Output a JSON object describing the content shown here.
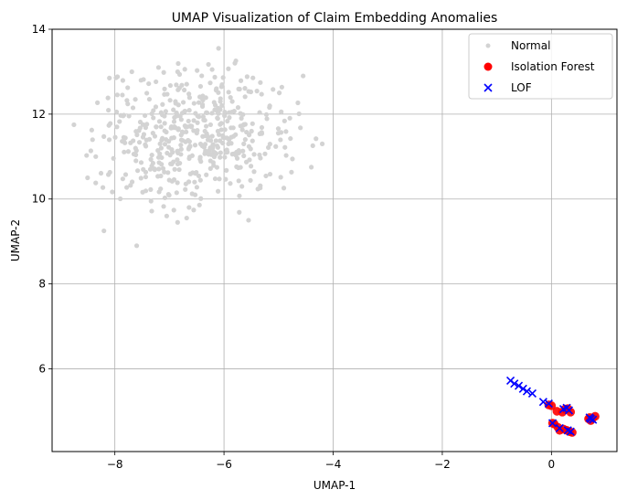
{
  "chart_data": {
    "type": "scatter",
    "title": "UMAP Visualization of Claim Embedding Anomalies",
    "xlabel": "UMAP-1",
    "ylabel": "UMAP-2",
    "xlim": [
      -9.15,
      1.2
    ],
    "ylim": [
      4.05,
      14.0
    ],
    "xticks": [
      -8,
      -6,
      -4,
      -2,
      0
    ],
    "yticks": [
      6,
      8,
      10,
      12,
      14
    ],
    "grid": true,
    "legend_position": "top-right",
    "series": [
      {
        "name": "Normal",
        "color": "#d3d3d3",
        "marker": "circle-small",
        "generated": {
          "count": 480,
          "center": [
            -6.5,
            11.45
          ],
          "radius": [
            2.2,
            2.0
          ],
          "seed": 7
        },
        "points": [
          [
            -8.2,
            9.25
          ],
          [
            -7.6,
            8.9
          ],
          [
            -5.55,
            9.5
          ],
          [
            -6.1,
            13.55
          ],
          [
            -4.2,
            11.3
          ],
          [
            -8.75,
            11.75
          ],
          [
            -8.5,
            10.5
          ],
          [
            -4.55,
            12.9
          ],
          [
            -5.8,
            13.2
          ],
          [
            -7.2,
            13.1
          ],
          [
            -8.1,
            12.85
          ],
          [
            -4.4,
            10.75
          ],
          [
            -6.85,
            9.45
          ],
          [
            -8.35,
            11.0
          ],
          [
            -7.05,
            9.6
          ]
        ]
      },
      {
        "name": "Isolation Forest",
        "color": "#ff0000",
        "marker": "circle",
        "points": [
          [
            -0.05,
            5.15
          ],
          [
            0.0,
            5.13
          ],
          [
            0.05,
            4.7
          ],
          [
            0.12,
            4.62
          ],
          [
            0.15,
            4.55
          ],
          [
            0.2,
            4.98
          ],
          [
            0.25,
            5.05
          ],
          [
            0.3,
            5.06
          ],
          [
            0.35,
            4.98
          ],
          [
            0.28,
            4.55
          ],
          [
            0.33,
            4.52
          ],
          [
            0.38,
            4.5
          ],
          [
            0.22,
            4.58
          ],
          [
            0.1,
            5.0
          ],
          [
            0.7,
            4.85
          ],
          [
            0.75,
            4.83
          ],
          [
            0.8,
            4.88
          ],
          [
            0.72,
            4.78
          ],
          [
            0.68,
            4.82
          ],
          [
            0.02,
            4.72
          ]
        ]
      },
      {
        "name": "LOF",
        "color": "#0000ff",
        "marker": "x",
        "points": [
          [
            -0.75,
            5.72
          ],
          [
            -0.68,
            5.65
          ],
          [
            -0.6,
            5.6
          ],
          [
            -0.52,
            5.53
          ],
          [
            -0.45,
            5.47
          ],
          [
            -0.35,
            5.42
          ],
          [
            -0.15,
            5.22
          ],
          [
            -0.05,
            5.18
          ],
          [
            0.02,
            4.72
          ],
          [
            0.15,
            4.6
          ],
          [
            0.22,
            5.05
          ],
          [
            0.28,
            5.08
          ],
          [
            0.32,
            5.02
          ],
          [
            0.3,
            4.55
          ],
          [
            0.35,
            4.52
          ],
          [
            0.72,
            4.82
          ],
          [
            0.76,
            4.8
          ],
          [
            0.7,
            4.85
          ]
        ]
      }
    ]
  }
}
